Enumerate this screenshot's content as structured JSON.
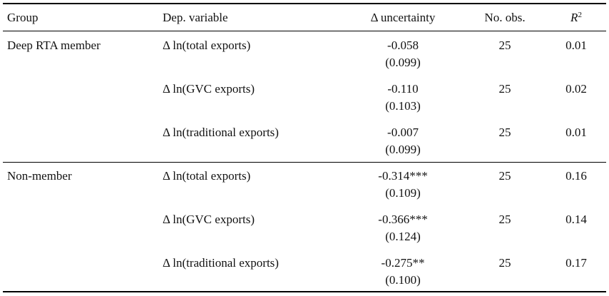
{
  "table": {
    "headers": {
      "group": "Group",
      "dep_variable": "Dep. variable",
      "uncertainty": "Δ uncertainty",
      "no_obs": "No. obs.",
      "r2_base": "R",
      "r2_sup": "2"
    },
    "groups": [
      {
        "name": "Deep RTA member",
        "rows": [
          {
            "dep_variable": "Δ ln(total exports)",
            "coef": "-0.058",
            "se": "(0.099)",
            "no_obs": "25",
            "r2": "0.01"
          },
          {
            "dep_variable": "Δ ln(GVC exports)",
            "coef": "-0.110",
            "se": "(0.103)",
            "no_obs": "25",
            "r2": "0.02"
          },
          {
            "dep_variable": "Δ ln(traditional exports)",
            "coef": "-0.007",
            "se": "(0.099)",
            "no_obs": "25",
            "r2": "0.01"
          }
        ]
      },
      {
        "name": "Non-member",
        "rows": [
          {
            "dep_variable": "Δ ln(total exports)",
            "coef": "-0.314***",
            "se": "(0.109)",
            "no_obs": "25",
            "r2": "0.16"
          },
          {
            "dep_variable": "Δ ln(GVC exports)",
            "coef": "-0.366***",
            "se": "(0.124)",
            "no_obs": "25",
            "r2": "0.14"
          },
          {
            "dep_variable": "Δ ln(traditional exports)",
            "coef": "-0.275**",
            "se": "(0.100)",
            "no_obs": "25",
            "r2": "0.17"
          }
        ]
      }
    ]
  }
}
